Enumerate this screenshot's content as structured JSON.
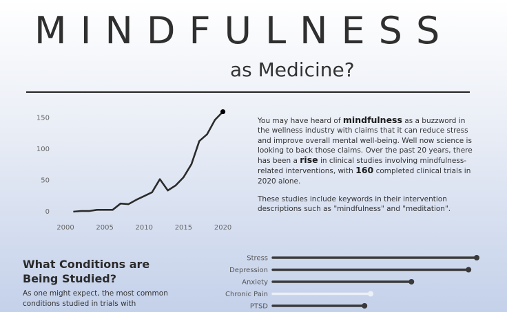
{
  "header": {
    "title": "MINDFULNESS",
    "subtitle": "as Medicine?"
  },
  "intro": {
    "p1_before": "You may have heard of ",
    "p1_bold1": "mindfulness",
    "p1_mid1": " as a buzzword in the wellness industry with claims that it can reduce stress and improve overall mental well-being. Well now science is looking to back those claims. Over the past 20 years, there has been a ",
    "p1_bold2": "rise",
    "p1_mid2": " in clinical studies involving mindfulness-related interventions, with ",
    "p1_bold3": "160",
    "p1_after": " completed clinical trials in 2020 alone.",
    "p2": "These studies include keywords in their intervention descriptions such as \"mindfulness\" and \"meditation\"."
  },
  "conditions_section": {
    "title": "What Conditions are Being Studied?",
    "text": "As one might expect, the most common conditions studied in trials with"
  },
  "chart_data": [
    {
      "type": "line",
      "title": "",
      "xlabel": "",
      "ylabel": "",
      "x": [
        2001,
        2002,
        2003,
        2004,
        2005,
        2006,
        2007,
        2008,
        2009,
        2010,
        2011,
        2012,
        2013,
        2014,
        2015,
        2016,
        2017,
        2018,
        2019,
        2020
      ],
      "series": [
        {
          "values": [
            0,
            1,
            1,
            3,
            3,
            3,
            13,
            12,
            19,
            25,
            31,
            52,
            34,
            42,
            55,
            76,
            113,
            124,
            147,
            160
          ]
        }
      ],
      "xlim": [
        2000,
        2021
      ],
      "ylim": [
        0,
        165
      ],
      "x_ticks": [
        2000,
        2005,
        2010,
        2015,
        2020
      ],
      "y_ticks": [
        0,
        50,
        100,
        150
      ],
      "grid": false,
      "line_color": "#2b2b2b",
      "endpoint_marker": true
    },
    {
      "type": "bar",
      "orientation": "horizontal",
      "style": "lollipop",
      "categories": [
        "Stress",
        "Depression",
        "Anxiety",
        "Chronic Pain",
        "PTSD"
      ],
      "values": [
        100,
        96,
        68,
        48,
        45
      ],
      "xlim": [
        0,
        100
      ],
      "colors": [
        "#3a3a3a",
        "#3a3a3a",
        "#3a3a3a",
        "#ecf0f7",
        "#3a3a3a"
      ]
    }
  ]
}
